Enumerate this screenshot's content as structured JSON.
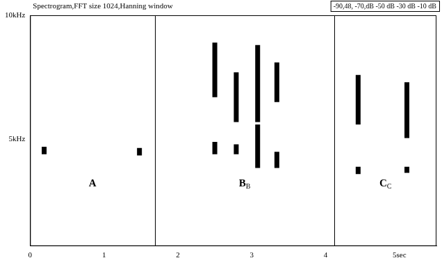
{
  "chart_data": {
    "type": "spectrogram",
    "title": "Spectrogram,FFT size 1024,Hanning window",
    "scale_label": "-90,48, -70,dB -50 dB -30 dB -10 dB",
    "color": "#000000",
    "grid": false,
    "xlim": [
      0,
      5.5
    ],
    "xticks": [
      0,
      1,
      2,
      3,
      4,
      {
        "value": 5,
        "label": "5sec"
      }
    ],
    "ylim": [
      0.7,
      10
    ],
    "yticks": [
      {
        "value": 5,
        "label": "5kHz"
      },
      {
        "value": 10,
        "label": "10kHz"
      }
    ],
    "section_bounds": [
      1.69,
      4.12
    ],
    "sections": [
      {
        "label": "A"
      },
      {
        "label": "B",
        "subscript": "B"
      },
      {
        "label": "C",
        "subscript": "C"
      }
    ],
    "syllables": [
      {
        "time": 0.19,
        "low": 4.4,
        "high": 4.7
      },
      {
        "time": 1.48,
        "low": 4.35,
        "high": 4.65
      },
      {
        "time": 2.5,
        "low": 6.7,
        "high": 8.9
      },
      {
        "time": 2.5,
        "low": 4.4,
        "high": 4.9
      },
      {
        "time": 2.79,
        "low": 5.7,
        "high": 7.7
      },
      {
        "time": 2.79,
        "low": 4.4,
        "high": 4.8
      },
      {
        "time": 3.08,
        "low": 5.7,
        "high": 8.8
      },
      {
        "time": 3.08,
        "low": 3.85,
        "high": 5.6
      },
      {
        "time": 3.34,
        "low": 6.5,
        "high": 8.1
      },
      {
        "time": 3.34,
        "low": 3.85,
        "high": 4.5
      },
      {
        "time": 4.44,
        "low": 5.6,
        "high": 7.6
      },
      {
        "time": 4.44,
        "low": 3.6,
        "high": 3.9
      },
      {
        "time": 5.1,
        "low": 5.05,
        "high": 7.3
      },
      {
        "time": 5.1,
        "low": 3.65,
        "high": 3.9
      }
    ]
  }
}
